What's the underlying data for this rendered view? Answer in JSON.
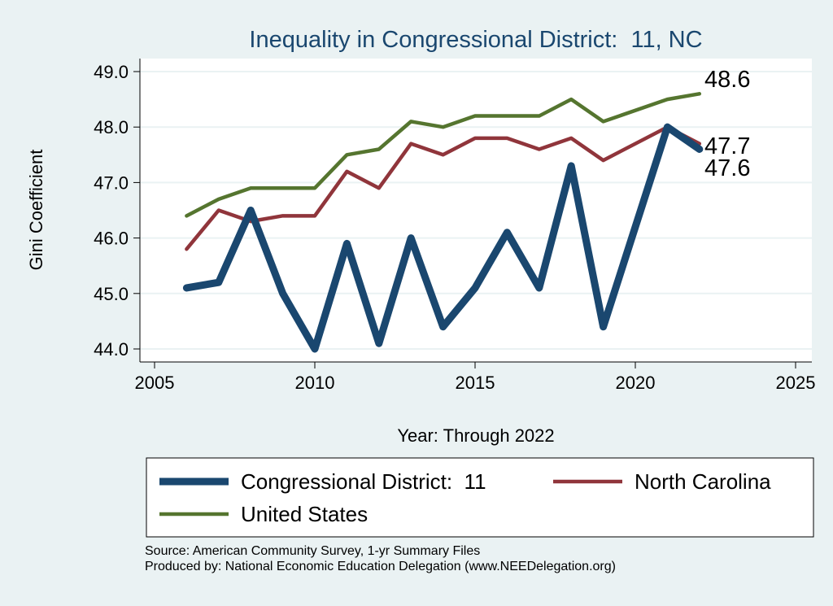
{
  "chart_data": {
    "type": "line",
    "title": "Inequality in Congressional District:  11, NC",
    "xlabel": "Year: Through 2022",
    "ylabel": "Gini Coefficient",
    "xlim": [
      2005,
      2025
    ],
    "ylim": [
      44.0,
      49.0
    ],
    "xticks": [
      "2005",
      "2010",
      "2015",
      "2020",
      "2025"
    ],
    "yticks": [
      "44.0",
      "45.0",
      "46.0",
      "47.0",
      "48.0",
      "49.0"
    ],
    "grid": true,
    "legend_position": "bottom",
    "x": [
      2006,
      2007,
      2008,
      2009,
      2010,
      2011,
      2012,
      2013,
      2014,
      2015,
      2016,
      2017,
      2018,
      2019,
      2021,
      2022
    ],
    "series": [
      {
        "name": "Congressional District:  11",
        "color": "#1a476f",
        "values": [
          45.1,
          45.2,
          46.5,
          45.0,
          44.0,
          45.9,
          44.1,
          46.0,
          44.4,
          45.1,
          46.1,
          45.1,
          47.3,
          44.4,
          48.0,
          47.6
        ],
        "end_label": "47.6"
      },
      {
        "name": "North Carolina",
        "color": "#90353b",
        "values": [
          45.8,
          46.5,
          46.3,
          46.4,
          46.4,
          47.2,
          46.9,
          47.7,
          47.5,
          47.8,
          47.8,
          47.6,
          47.8,
          47.4,
          48.0,
          47.7
        ],
        "end_label": "47.7"
      },
      {
        "name": "United States",
        "color": "#55752f",
        "values": [
          46.4,
          46.7,
          46.9,
          46.9,
          46.9,
          47.5,
          47.6,
          48.1,
          48.0,
          48.2,
          48.2,
          48.2,
          48.5,
          48.1,
          48.5,
          48.6
        ],
        "end_label": "48.6"
      }
    ]
  },
  "notes": {
    "source": "Source: American Community Survey, 1-yr Summary Files",
    "produced": "Produced by: National Economic Education Delegation (www.NEEDelegation.org)"
  }
}
